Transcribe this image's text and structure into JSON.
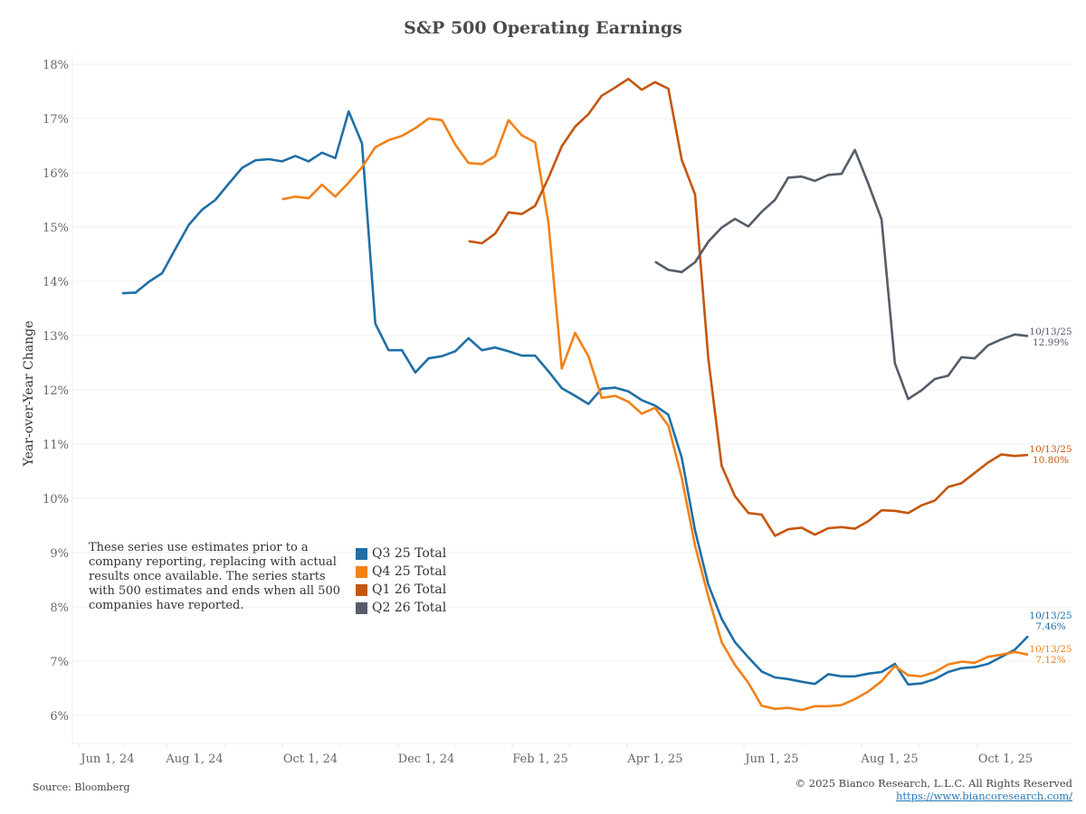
{
  "chart_data": {
    "type": "line",
    "title": "S&P 500 Operating Earnings",
    "xlabel": "",
    "ylabel": "Year-over-Year Change",
    "ylim": [
      5.6,
      18.0
    ],
    "y_ticks": [
      "6%",
      "7%",
      "8%",
      "9%",
      "10%",
      "11%",
      "12%",
      "13%",
      "14%",
      "15%",
      "16%",
      "17%",
      "18%"
    ],
    "y_tick_values": [
      6,
      7,
      8,
      9,
      10,
      11,
      12,
      13,
      14,
      15,
      16,
      17,
      18
    ],
    "x_ticks": [
      "Jun 1, 24",
      "Aug 1, 24",
      "Oct 1, 24",
      "Dec 1, 24",
      "Feb 1, 25",
      "Apr 1, 25",
      "Jun 1, 25",
      "Aug 1, 25",
      "Oct 1, 25"
    ],
    "x_unit": "weeks",
    "x_range_weeks": [
      0,
      68
    ],
    "grid": true,
    "legend_position": "bottom-left",
    "series": [
      {
        "name": "Q3 25 Total",
        "color": "#1f6fa6",
        "start_week": 0,
        "values": [
          13.78,
          13.79,
          13.99,
          14.15,
          14.6,
          15.04,
          15.32,
          15.5,
          15.8,
          16.09,
          16.23,
          16.25,
          16.21,
          16.31,
          16.21,
          16.37,
          16.27,
          17.13,
          16.54,
          13.22,
          12.73,
          12.73,
          12.32,
          12.58,
          12.62,
          12.71,
          12.95,
          12.73,
          12.78,
          12.71,
          12.63,
          12.63,
          12.34,
          12.03,
          11.89,
          11.74,
          12.02,
          12.04,
          11.97,
          11.81,
          11.71,
          11.54,
          10.75,
          9.41,
          8.41,
          7.78,
          7.35,
          7.07,
          6.81,
          6.7,
          6.67,
          6.62,
          6.58,
          6.76,
          6.72,
          6.72,
          6.77,
          6.8,
          6.95,
          6.57,
          6.59,
          6.67,
          6.8,
          6.87,
          6.89,
          6.95,
          7.08,
          7.21,
          7.46
        ],
        "end_label_date": "10/13/25",
        "end_label_value": "7.46%"
      },
      {
        "name": "Q4 25 Total",
        "color": "#f28117",
        "start_week": 12,
        "values": [
          15.51,
          15.56,
          15.53,
          15.78,
          15.56,
          15.82,
          16.1,
          16.47,
          16.6,
          16.68,
          16.82,
          17.0,
          16.97,
          16.52,
          16.18,
          16.16,
          16.31,
          16.97,
          16.69,
          16.56,
          15.07,
          12.39,
          13.05,
          12.62,
          11.85,
          11.89,
          11.78,
          11.56,
          11.67,
          11.34,
          10.38,
          9.13,
          8.19,
          7.35,
          6.93,
          6.6,
          6.18,
          6.12,
          6.14,
          6.1,
          6.17,
          6.17,
          6.19,
          6.3,
          6.44,
          6.63,
          6.91,
          6.74,
          6.72,
          6.8,
          6.94,
          6.99,
          6.97,
          7.08,
          7.12,
          7.17,
          7.12
        ],
        "end_label_date": "10/13/25",
        "end_label_value": "7.12%"
      },
      {
        "name": "Q1 26 Total",
        "color": "#c5560c",
        "start_week": 26,
        "values": [
          14.74,
          14.7,
          14.88,
          15.27,
          15.24,
          15.39,
          15.91,
          16.49,
          16.85,
          17.08,
          17.42,
          17.57,
          17.73,
          17.53,
          17.67,
          17.55,
          16.24,
          15.6,
          12.57,
          10.6,
          10.04,
          9.73,
          9.7,
          9.31,
          9.43,
          9.46,
          9.33,
          9.45,
          9.47,
          9.44,
          9.58,
          9.78,
          9.77,
          9.73,
          9.87,
          9.96,
          10.21,
          10.28,
          10.47,
          10.66,
          10.81,
          10.78,
          10.8
        ],
        "end_label_date": "10/13/25",
        "end_label_value": "10.80%"
      },
      {
        "name": "Q2 26 Total",
        "color": "#555d69",
        "start_week": 40,
        "values": [
          14.36,
          14.21,
          14.17,
          14.35,
          14.73,
          14.99,
          15.15,
          15.01,
          15.28,
          15.5,
          15.91,
          15.93,
          15.85,
          15.96,
          15.98,
          16.42,
          15.8,
          15.14,
          12.49,
          11.83,
          11.99,
          12.2,
          12.26,
          12.6,
          12.58,
          12.82,
          12.93,
          13.02,
          12.99
        ],
        "end_label_date": "10/13/25",
        "end_label_value": "12.99%"
      }
    ]
  },
  "annotation": "These series use estimates prior to a company reporting, replacing with actual results once available. The series starts with 500 estimates and ends when all 500 companies have reported.",
  "footer": {
    "source": "Source: Bloomberg",
    "copyright": "© 2025 Bianco Research, L.L.C. All Rights Reserved",
    "url": "https://www.biancoresearch.com/"
  }
}
